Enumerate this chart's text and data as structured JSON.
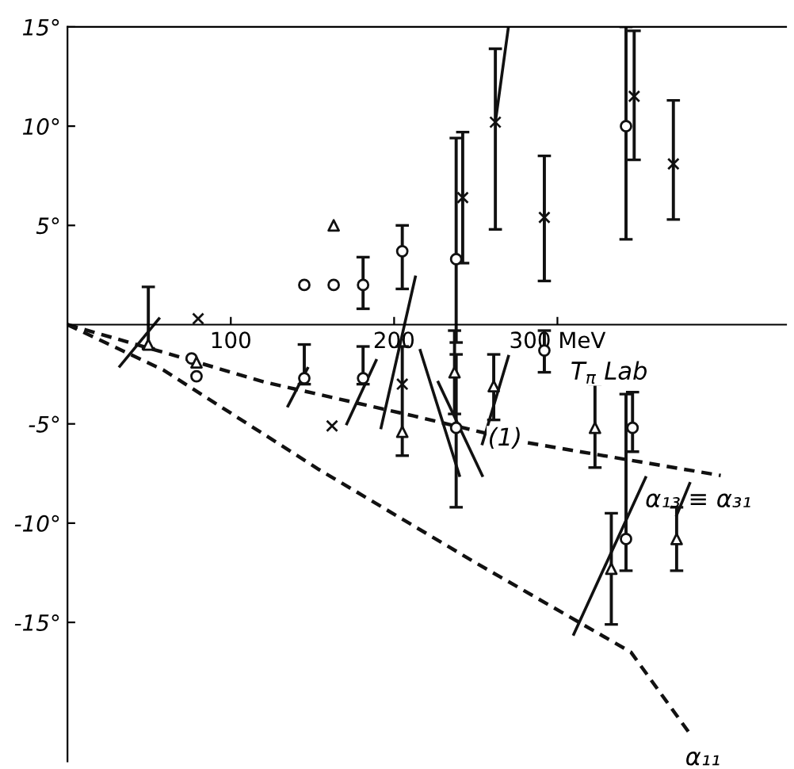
{
  "chart_data": {
    "type": "scatter",
    "xlim": [
      0,
      440
    ],
    "ylim": [
      -22,
      15
    ],
    "xticks": [
      100,
      200,
      {
        "value": 300,
        "label": "300 MeV"
      }
    ],
    "yticks": [
      {
        "value": -15,
        "label": "-15°"
      },
      {
        "value": -10,
        "label": "-10°"
      },
      {
        "value": -5,
        "label": "-5°"
      },
      {
        "value": 5,
        "label": "5°"
      },
      {
        "value": 10,
        "label": "10°"
      },
      {
        "value": 15,
        "label": "15°"
      }
    ],
    "grid": false,
    "legend": false,
    "annotations": [
      "T$_{π}$ Lab",
      "(1)"
    ],
    "series": [
      {
        "marker": "circle",
        "color": "#111111",
        "x": [
          145,
          163,
          181,
          76,
          79,
          145,
          181,
          205,
          238,
          238,
          292,
          342,
          346,
          342
        ],
        "values": [
          2.0,
          2.0,
          2.0,
          -1.7,
          -2.6,
          -2.7,
          -2.7,
          3.7,
          3.3,
          -5.2,
          -1.3,
          10.0,
          -5.2,
          -10.8
        ],
        "errors": [
          null,
          null,
          [
            0.8,
            3.4
          ],
          null,
          null,
          [
            -3.0,
            -1.0
          ],
          [
            -3.0,
            -1.1
          ],
          [
            1.8,
            5.0
          ],
          [
            -0.9,
            9.4
          ],
          [
            -9.2,
            -1.5
          ],
          [
            -2.4,
            -0.3
          ],
          [
            4.3,
            15.0
          ],
          [
            -6.4,
            -3.4
          ],
          [
            -12.4,
            -3.5
          ]
        ]
      },
      {
        "marker": "cross",
        "color": "#111111",
        "x": [
          80,
          162,
          205,
          242,
          262,
          292,
          347,
          371
        ],
        "values": [
          0.3,
          -5.1,
          -3.0,
          6.4,
          10.2,
          5.4,
          11.5,
          8.1
        ],
        "errors": [
          null,
          null,
          [
            -6.6,
            -1.1
          ],
          [
            3.1,
            9.7
          ],
          [
            4.8,
            13.9
          ],
          [
            2.2,
            8.5
          ],
          [
            8.3,
            14.8
          ],
          [
            5.3,
            11.3
          ]
        ]
      },
      {
        "marker": "triangle",
        "color": "#111111",
        "x": [
          49.5,
          79,
          163,
          205,
          237,
          261,
          323,
          333,
          373
        ],
        "values": [
          -1.0,
          -1.9,
          5.0,
          -5.4,
          -2.4,
          -3.1,
          -5.2,
          -12.3,
          -10.8
        ],
        "errors": [
          [
            -1.2,
            1.9
          ],
          null,
          null,
          null,
          [
            -4.5,
            -0.3
          ],
          [
            -4.8,
            -1.5
          ],
          [
            -7.2,
            -3.0
          ],
          [
            -15.1,
            -9.5
          ],
          [
            -12.4,
            -9.2
          ]
        ]
      },
      {
        "type": "line",
        "line_style": "solid",
        "color": "#111111",
        "x": [
          32,
          56
        ],
        "values": [
          -2.1,
          0.3
        ]
      },
      {
        "type": "line",
        "line_style": "solid",
        "color": "#111111",
        "x": [
          135,
          147
        ],
        "values": [
          -4.1,
          -2.2
        ]
      },
      {
        "type": "line",
        "line_style": "solid",
        "color": "#111111",
        "x": [
          171,
          189
        ],
        "values": [
          -5.0,
          -1.8
        ]
      },
      {
        "type": "line",
        "line_style": "solid",
        "color": "#111111",
        "x": [
          192,
          213
        ],
        "values": [
          -5.2,
          2.4
        ]
      },
      {
        "type": "line",
        "line_style": "solid",
        "color": "#111111",
        "x": [
          227,
          254
        ],
        "values": [
          -2.9,
          -7.6
        ]
      },
      {
        "type": "line",
        "line_style": "solid",
        "color": "#111111",
        "x": [
          216,
          240
        ],
        "values": [
          -1.3,
          -7.6
        ]
      },
      {
        "type": "line",
        "line_style": "solid",
        "color": "#111111",
        "x": [
          262,
          270
        ],
        "values": [
          10.2,
          15.0
        ]
      },
      {
        "type": "line",
        "line_style": "solid",
        "color": "#111111",
        "x": [
          254,
          270
        ],
        "values": [
          -6.0,
          -1.6
        ]
      },
      {
        "type": "line",
        "line_style": "solid",
        "color": "#111111",
        "x": [
          310,
          354
        ],
        "values": [
          -15.6,
          -7.7
        ]
      },
      {
        "type": "line",
        "line_style": "solid",
        "color": "#111111",
        "x": [
          373,
          381
        ],
        "values": [
          -9.6,
          -8.0
        ]
      },
      {
        "type": "line",
        "line_style": "dashed",
        "color": "#111111",
        "name": "α₁₃ ≡ α₃₁",
        "x": [
          0,
          59,
          121,
          212,
          278,
          400
        ],
        "values": [
          0,
          -1.4,
          -2.9,
          -4.6,
          -5.9,
          -7.6
        ]
      },
      {
        "type": "line",
        "line_style": "dashed",
        "color": "#111111",
        "name": "α₁₁",
        "x": [
          0,
          59,
          154,
          250,
          345,
          381
        ],
        "values": [
          0,
          -2.3,
          -7.3,
          -12.0,
          -16.5,
          -20.6
        ]
      }
    ]
  }
}
